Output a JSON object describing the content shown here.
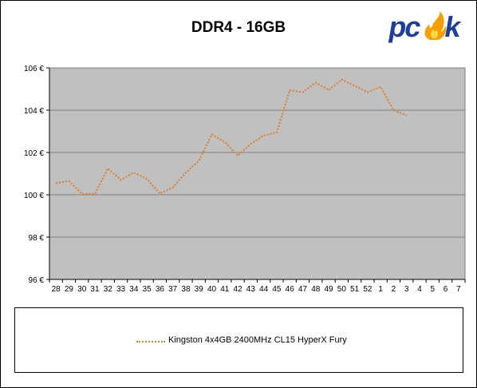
{
  "chart_data": {
    "type": "line",
    "title": "DDR4 - 16GB",
    "ylim": [
      96,
      106
    ],
    "y_ticks": [
      "96 €",
      "98 €",
      "100 €",
      "102 €",
      "104 €",
      "106 €"
    ],
    "y_tick_values": [
      96,
      98,
      100,
      102,
      104,
      106
    ],
    "categories": [
      "28",
      "29",
      "30",
      "31",
      "32",
      "33",
      "34",
      "35",
      "36",
      "37",
      "38",
      "39",
      "40",
      "41",
      "42",
      "43",
      "44",
      "45",
      "46",
      "47",
      "48",
      "49",
      "50",
      "51",
      "52",
      "1",
      "2",
      "3",
      "4",
      "5",
      "6",
      "7"
    ],
    "grid": "horizontal",
    "legend_position": "bottom",
    "series": [
      {
        "name": "Kingston 4x4GB 2400MHz CL15 HyperX Fury",
        "color": "#e07b28",
        "values": [
          100.55,
          100.65,
          100.05,
          100.05,
          101.25,
          100.7,
          101.05,
          100.75,
          100.05,
          100.35,
          101.05,
          101.6,
          102.85,
          102.5,
          101.85,
          102.4,
          102.8,
          102.95,
          104.95,
          104.85,
          105.3,
          104.95,
          105.45,
          105.15,
          104.85,
          105.1,
          104.0,
          103.75,
          null,
          null,
          null,
          null
        ]
      }
    ]
  },
  "logo": {
    "text": "pcsk",
    "colors": {
      "main": "#1f3d9a",
      "flame": "#f5a000"
    }
  },
  "colors": {
    "plot_bg": "#c0c0c0",
    "line": "#e07b28"
  }
}
